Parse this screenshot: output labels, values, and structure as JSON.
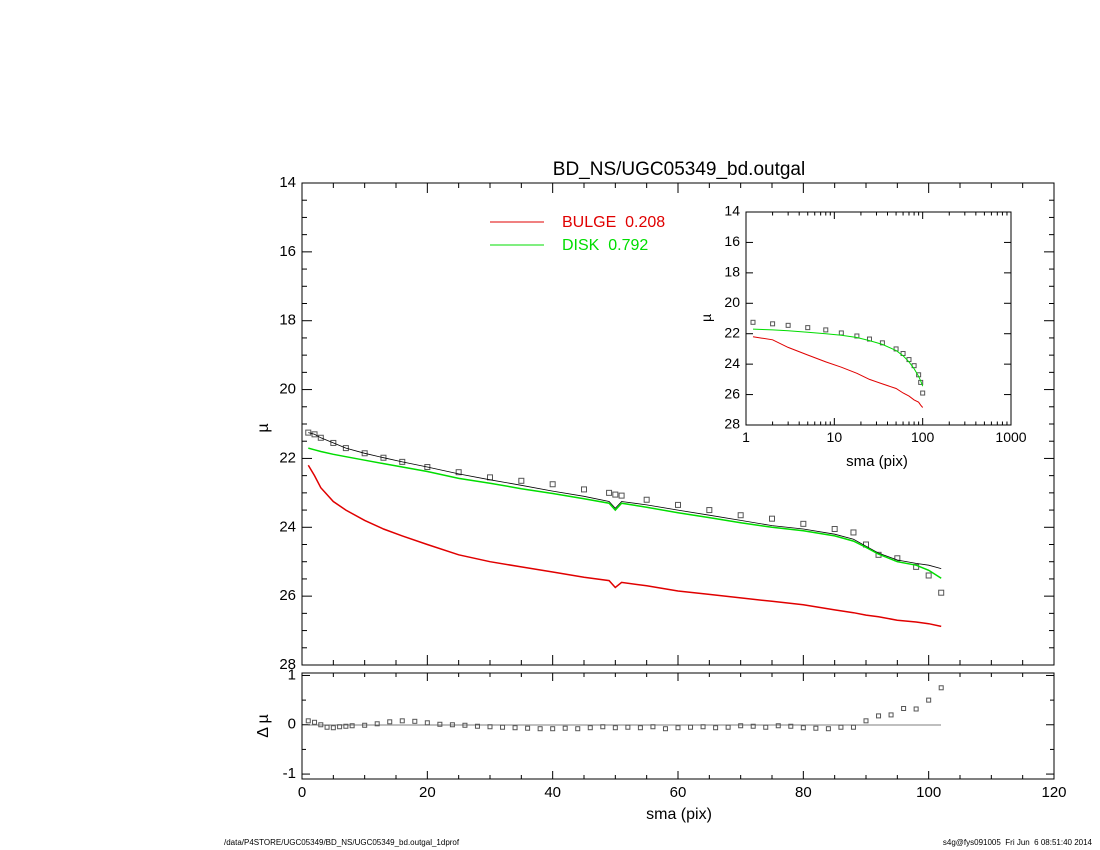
{
  "chart_data": [
    {
      "type": "line",
      "title": "BD_NS/UGC05349_bd.outgal",
      "xlabel": "",
      "ylabel": "µ",
      "xlim": [
        0,
        120
      ],
      "ylim": [
        28,
        14
      ],
      "y_inverted": true,
      "xticks": [
        0,
        20,
        40,
        60,
        80,
        100,
        120
      ],
      "yticks": [
        14,
        16,
        18,
        20,
        22,
        24,
        26,
        28
      ],
      "legend": [
        {
          "label": "BULGE  0.208",
          "color": "#e00000"
        },
        {
          "label": "DISK  0.792",
          "color": "#00dd00"
        }
      ],
      "x": [
        1,
        2,
        3,
        5,
        7,
        10,
        13,
        16,
        20,
        25,
        30,
        35,
        40,
        45,
        49,
        50,
        51,
        55,
        60,
        65,
        70,
        75,
        80,
        85,
        88,
        90,
        92,
        95,
        98,
        100,
        102
      ],
      "series": [
        {
          "name": "data",
          "marker": "square",
          "color": "#555555",
          "values": [
            21.25,
            21.3,
            21.4,
            21.55,
            21.7,
            21.85,
            21.98,
            22.1,
            22.25,
            22.4,
            22.55,
            22.65,
            22.75,
            22.9,
            23.0,
            23.05,
            23.08,
            23.2,
            23.35,
            23.5,
            23.65,
            23.75,
            23.9,
            24.05,
            24.15,
            24.5,
            24.8,
            24.9,
            25.15,
            25.4,
            25.9
          ]
        },
        {
          "name": "model",
          "color": "#000000",
          "values": [
            21.25,
            21.3,
            21.4,
            21.55,
            21.7,
            21.85,
            21.98,
            22.1,
            22.25,
            22.45,
            22.62,
            22.78,
            22.95,
            23.1,
            23.25,
            23.45,
            23.25,
            23.35,
            23.5,
            23.65,
            23.8,
            23.95,
            24.05,
            24.2,
            24.35,
            24.55,
            24.75,
            24.95,
            25.05,
            25.1,
            25.2
          ]
        },
        {
          "name": "BULGE",
          "color": "#e00000",
          "values": [
            22.2,
            22.5,
            22.85,
            23.25,
            23.5,
            23.8,
            24.05,
            24.25,
            24.5,
            24.8,
            25.0,
            25.15,
            25.3,
            25.45,
            25.55,
            25.75,
            25.6,
            25.7,
            25.85,
            25.95,
            26.05,
            26.15,
            26.25,
            26.4,
            26.48,
            26.55,
            26.6,
            26.7,
            26.75,
            26.8,
            26.88
          ]
        },
        {
          "name": "DISK",
          "color": "#00dd00",
          "values": [
            21.7,
            21.75,
            21.8,
            21.88,
            21.95,
            22.05,
            22.15,
            22.25,
            22.38,
            22.58,
            22.72,
            22.88,
            23.02,
            23.17,
            23.3,
            23.5,
            23.3,
            23.42,
            23.58,
            23.72,
            23.87,
            24.0,
            24.1,
            24.25,
            24.4,
            24.58,
            24.78,
            25.0,
            25.1,
            25.25,
            25.48
          ]
        }
      ]
    },
    {
      "type": "scatter",
      "xlabel": "sma (pix)",
      "ylabel": "Δ µ",
      "xlim": [
        0,
        120
      ],
      "ylim": [
        -1.1,
        1.05
      ],
      "xticks": [
        0,
        20,
        40,
        60,
        80,
        100,
        120
      ],
      "yticks": [
        -1,
        0,
        1
      ],
      "x": [
        1,
        2,
        3,
        4,
        5,
        6,
        7,
        8,
        10,
        12,
        14,
        16,
        18,
        20,
        22,
        24,
        26,
        28,
        30,
        32,
        34,
        36,
        38,
        40,
        42,
        44,
        46,
        48,
        50,
        52,
        54,
        56,
        58,
        60,
        62,
        64,
        66,
        68,
        70,
        72,
        74,
        76,
        78,
        80,
        82,
        84,
        86,
        88,
        90,
        92,
        94,
        96,
        98,
        100,
        102
      ],
      "values": [
        0.08,
        0.05,
        0.0,
        -0.05,
        -0.06,
        -0.04,
        -0.03,
        -0.02,
        -0.01,
        0.02,
        0.06,
        0.08,
        0.07,
        0.04,
        0.01,
        0.0,
        -0.01,
        -0.03,
        -0.04,
        -0.05,
        -0.06,
        -0.07,
        -0.08,
        -0.08,
        -0.07,
        -0.08,
        -0.06,
        -0.04,
        -0.06,
        -0.05,
        -0.06,
        -0.04,
        -0.08,
        -0.06,
        -0.05,
        -0.04,
        -0.06,
        -0.05,
        -0.02,
        -0.03,
        -0.05,
        -0.02,
        -0.03,
        -0.06,
        -0.07,
        -0.08,
        -0.05,
        -0.05,
        0.08,
        0.18,
        0.2,
        0.33,
        0.32,
        0.5,
        0.75
      ]
    },
    {
      "type": "line",
      "xlabel": "sma (pix)",
      "ylabel": "µ",
      "x_scale": "log",
      "xlim": [
        1,
        1000
      ],
      "ylim": [
        28,
        14
      ],
      "y_inverted": true,
      "xticks": [
        1,
        10,
        100,
        1000
      ],
      "yticks": [
        14,
        16,
        18,
        20,
        22,
        24,
        26,
        28
      ],
      "x": [
        1.2,
        2,
        3,
        5,
        8,
        12,
        18,
        25,
        35,
        50,
        60,
        70,
        80,
        90,
        95,
        100
      ],
      "series": [
        {
          "name": "data",
          "marker": "square",
          "color": "#555555",
          "values": [
            21.25,
            21.35,
            21.45,
            21.6,
            21.75,
            21.95,
            22.15,
            22.35,
            22.6,
            23.0,
            23.3,
            23.7,
            24.1,
            24.7,
            25.2,
            25.9
          ]
        },
        {
          "name": "BULGE",
          "color": "#e00000",
          "values": [
            22.2,
            22.4,
            22.9,
            23.4,
            23.85,
            24.2,
            24.6,
            25.0,
            25.3,
            25.6,
            25.9,
            26.1,
            26.35,
            26.5,
            26.7,
            26.85
          ]
        },
        {
          "name": "DISK",
          "color": "#00dd00",
          "values": [
            21.7,
            21.75,
            21.8,
            21.9,
            22.0,
            22.1,
            22.25,
            22.45,
            22.7,
            23.1,
            23.45,
            23.85,
            24.3,
            24.8,
            25.1,
            25.45
          ]
        }
      ]
    }
  ],
  "footer": {
    "left": "/data/P4STORE/UGC05349/BD_NS/UGC05349_bd.outgal_1dprof",
    "right": "s4g@fys091005  Fri Jun  6 08:51:40 2014"
  }
}
